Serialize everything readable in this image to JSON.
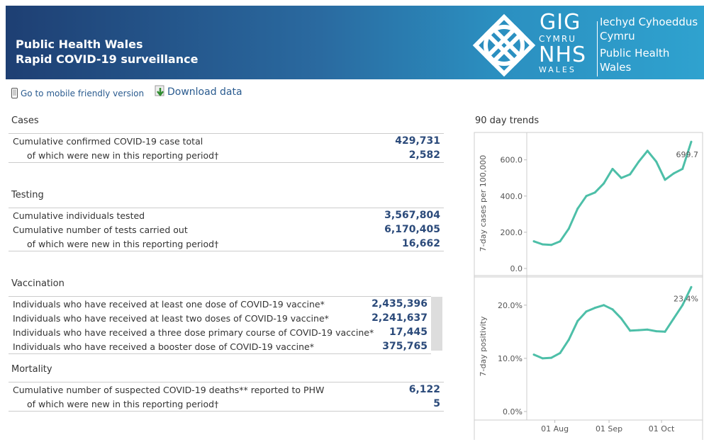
{
  "header": {
    "title_line1": "Public Health Wales",
    "title_line2": "Rapid COVID-19 surveillance",
    "logo_gig": "GIG",
    "logo_cymru": "CYMRU",
    "logo_nhs": "NHS",
    "logo_wales": "WALES",
    "org_welsh_1": "Iechyd Cyhoeddus",
    "org_welsh_2": "Cymru",
    "org_english_1": "Public Health",
    "org_english_2": "Wales"
  },
  "links": {
    "mobile": "Go to mobile friendly version",
    "download": "Download data"
  },
  "sections": {
    "cases": {
      "title": "Cases",
      "rows": [
        {
          "label": "Cumulative confirmed COVID-19 case total",
          "value": "429,731"
        },
        {
          "label": "of which were new in this reporting period†",
          "value": "2,582"
        }
      ]
    },
    "testing": {
      "title": "Testing",
      "rows": [
        {
          "label": "Cumulative individuals tested",
          "value": "3,567,804"
        },
        {
          "label": "Cumulative number of tests carried out",
          "value": "6,170,405"
        },
        {
          "label": "of which were new in this reporting period†",
          "value": "16,662"
        }
      ]
    },
    "vaccination": {
      "title": "Vaccination",
      "rows": [
        {
          "label": "Individuals who have received at least one dose of COVID-19 vaccine*",
          "value": "2,435,396"
        },
        {
          "label": "Individuals who have received at least two doses of COVID-19 vaccine*",
          "value": "2,241,637"
        },
        {
          "label": "Individuals who have received a three dose primary course of COVID-19 vaccine*",
          "value": "17,445"
        },
        {
          "label": "Individuals who have received a booster dose of COVID-19 vaccine*",
          "value": "375,765"
        }
      ]
    },
    "mortality": {
      "title": "Mortality",
      "rows": [
        {
          "label": "Cumulative number of suspected COVID-19 deaths** reported to PHW",
          "value": "6,122"
        },
        {
          "label": "of which were new in this reporting period†",
          "value": "5"
        }
      ]
    }
  },
  "trends": {
    "title": "90 day trends"
  },
  "colors": {
    "line": "#4dbfa8",
    "value_text": "#2b4a7a"
  },
  "chart_data": [
    {
      "type": "line",
      "ylabel": "7-day cases per 100,000",
      "yticks": [
        "0.0",
        "200.0",
        "400.0",
        "600.0"
      ],
      "ylim": [
        0,
        720
      ],
      "end_label": "699.7",
      "x": [
        "2021-07-20",
        "2021-07-25",
        "2021-07-30",
        "2021-08-04",
        "2021-08-09",
        "2021-08-14",
        "2021-08-19",
        "2021-08-24",
        "2021-08-29",
        "2021-09-03",
        "2021-09-08",
        "2021-09-13",
        "2021-09-18",
        "2021-09-23",
        "2021-09-28",
        "2021-10-03",
        "2021-10-08",
        "2021-10-13",
        "2021-10-18"
      ],
      "values": [
        150,
        133,
        130,
        150,
        220,
        330,
        400,
        420,
        470,
        550,
        500,
        520,
        590,
        650,
        590,
        490,
        525,
        550,
        700
      ]
    },
    {
      "type": "line",
      "ylabel": "7-day positivity",
      "yticks": [
        "0.0%",
        "10.0%",
        "20.0%"
      ],
      "ylim": [
        0,
        24.5
      ],
      "end_label": "23.4%",
      "x": [
        "2021-07-20",
        "2021-07-25",
        "2021-07-30",
        "2021-08-04",
        "2021-08-09",
        "2021-08-14",
        "2021-08-19",
        "2021-08-24",
        "2021-08-29",
        "2021-09-03",
        "2021-09-08",
        "2021-09-13",
        "2021-09-18",
        "2021-09-23",
        "2021-09-28",
        "2021-10-03",
        "2021-10-08",
        "2021-10-13",
        "2021-10-18"
      ],
      "values": [
        10.7,
        10.0,
        10.1,
        11.0,
        13.5,
        17.0,
        18.8,
        19.5,
        20.0,
        19.2,
        17.5,
        15.2,
        15.3,
        15.4,
        15.1,
        15.0,
        17.5,
        20.0,
        23.4
      ]
    },
    {
      "type": "axis",
      "xticks": [
        "01 Aug",
        "01 Sep",
        "01 Oct"
      ]
    }
  ]
}
